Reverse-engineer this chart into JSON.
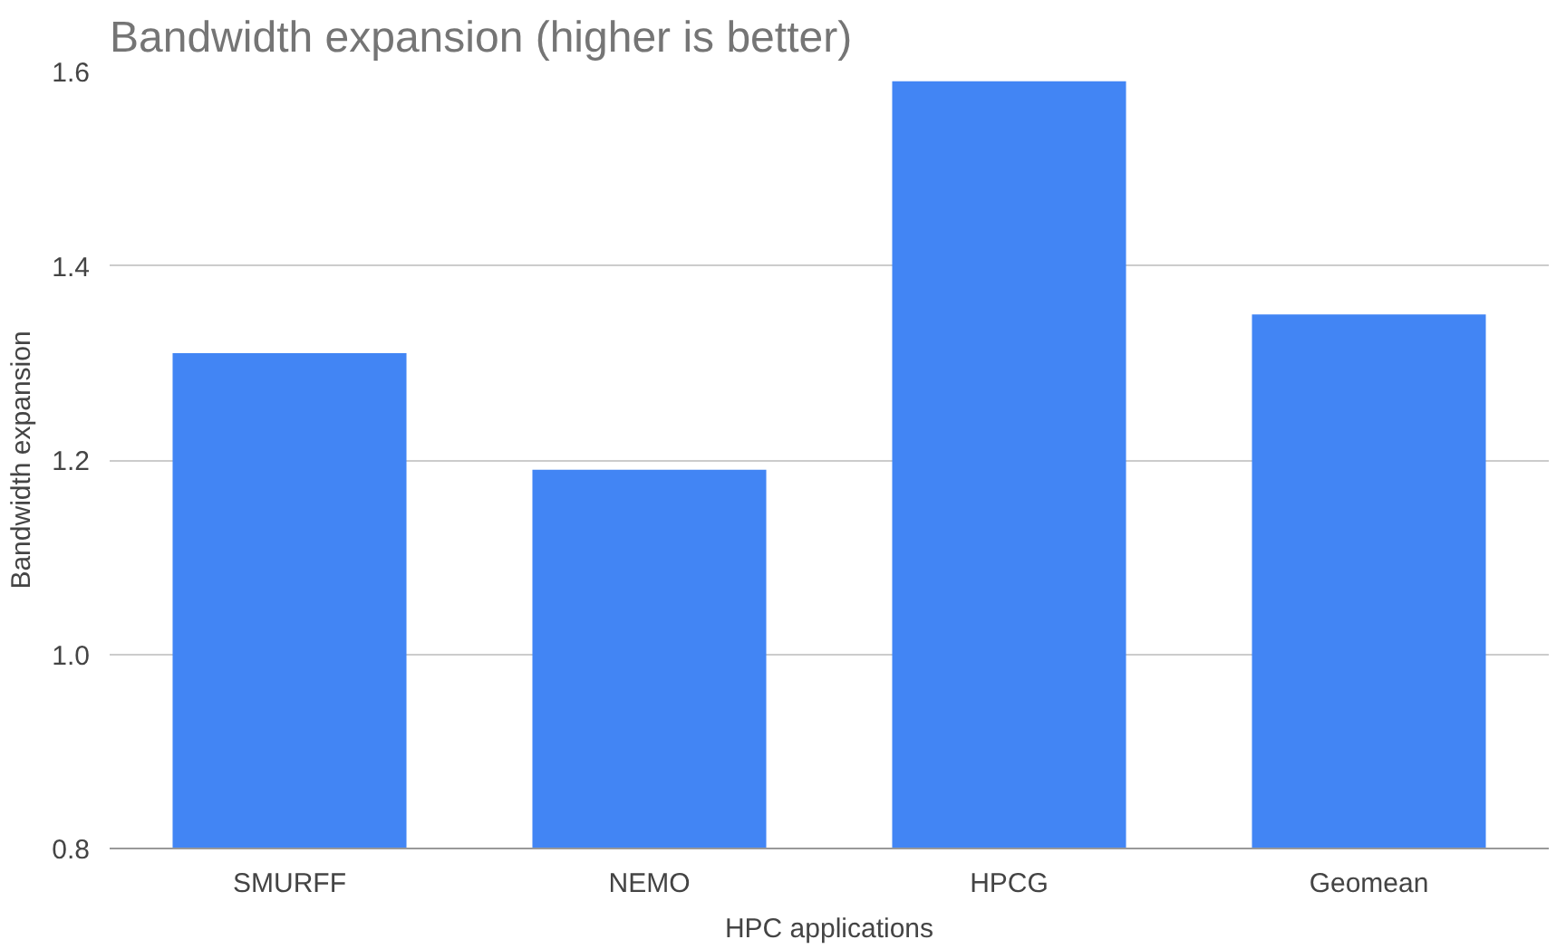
{
  "chart_data": {
    "type": "bar",
    "title": "Bandwidth expansion (higher is better)",
    "xlabel": "HPC applications",
    "ylabel": "Bandwidth expansion",
    "categories": [
      "SMURFF",
      "NEMO",
      "HPCG",
      "Geomean"
    ],
    "values": [
      1.31,
      1.19,
      1.59,
      1.35
    ],
    "color": "#4285f4",
    "ylim": [
      0.8,
      1.6
    ],
    "yticks": [
      {
        "value": 0.8,
        "label": "0.8"
      },
      {
        "value": 1.0,
        "label": "1.0"
      },
      {
        "value": 1.2,
        "label": "1.2"
      },
      {
        "value": 1.4,
        "label": "1.4"
      },
      {
        "value": 1.6,
        "label": "1.6"
      }
    ],
    "grid": "y"
  }
}
